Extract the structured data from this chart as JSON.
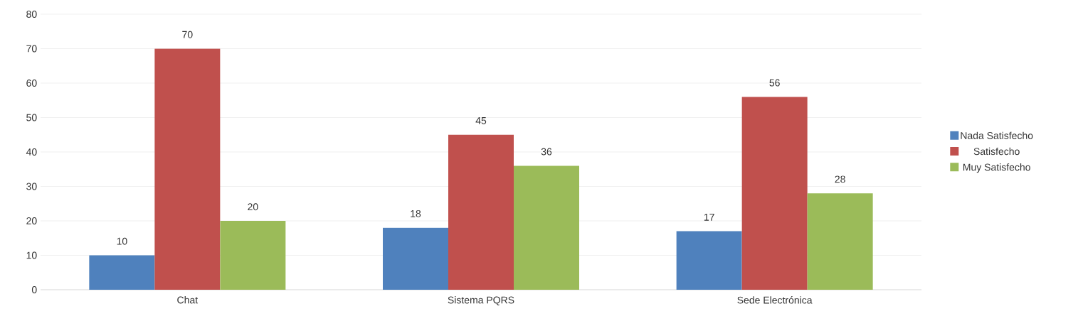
{
  "chart_data": {
    "type": "bar",
    "categories": [
      "Chat",
      "Sistema PQRS",
      "Sede Electrónica"
    ],
    "series": [
      {
        "name": "Nada Satisfecho",
        "color": "#4f81bd",
        "values": [
          10,
          18,
          17
        ]
      },
      {
        "name": "Satisfecho",
        "color": "#c0504d",
        "values": [
          70,
          45,
          56
        ]
      },
      {
        "name": "Muy Satisfecho",
        "color": "#9bbb59",
        "values": [
          20,
          36,
          28
        ]
      }
    ],
    "ylim": [
      0,
      80
    ],
    "yticks": [
      0,
      10,
      20,
      30,
      40,
      50,
      60,
      70,
      80
    ],
    "grid": "y",
    "legend": "right",
    "data_labels": true
  }
}
